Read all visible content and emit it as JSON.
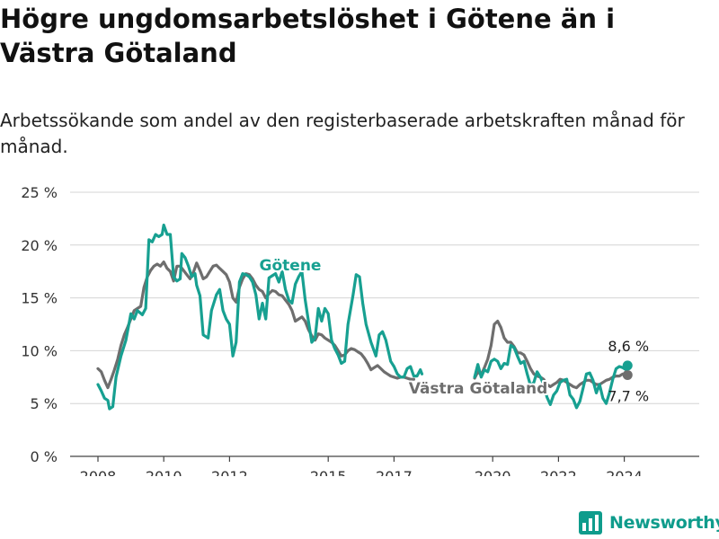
{
  "title": "Högre ungdomsarbetslöshet i Götene än i Västra Götaland",
  "subtitle": "Arbetssökande som andel av den registerbaserade arbetskraften månad för månad.",
  "colors": {
    "gotene": "#17a091",
    "vg": "#6e6e6e",
    "grid": "#d4d4d4",
    "text": "#333333"
  },
  "brand": {
    "name": "Newsworthy",
    "icon": "bar-chart-logo-icon"
  },
  "chart_data": {
    "type": "line",
    "ylim": [
      0,
      25
    ],
    "yticks": [
      0,
      5,
      10,
      15,
      20,
      25
    ],
    "ytick_labels": [
      "0 %",
      "5 %",
      "10 %",
      "15 %",
      "20 %",
      "25 %"
    ],
    "xlim": [
      2008.0,
      2025.5
    ],
    "xticks": [
      2008,
      2010,
      2012,
      2015,
      2017,
      2020,
      2022,
      2024
    ],
    "xtick_labels": [
      "2008",
      "2010",
      "2012",
      "2015",
      "2017",
      "2020",
      "2022",
      "2024"
    ],
    "series": [
      {
        "name": "Götene",
        "color": "#17a091",
        "end_label": "8,6 %",
        "points": [
          [
            2008.0,
            6.8
          ],
          [
            2008.1,
            6.2
          ],
          [
            2008.2,
            5.5
          ],
          [
            2008.3,
            5.3
          ],
          [
            2008.35,
            4.5
          ],
          [
            2008.45,
            4.7
          ],
          [
            2008.55,
            7.5
          ],
          [
            2008.7,
            9.5
          ],
          [
            2008.85,
            11.0
          ],
          [
            2009.0,
            13.5
          ],
          [
            2009.1,
            13.0
          ],
          [
            2009.2,
            13.8
          ],
          [
            2009.35,
            13.4
          ],
          [
            2009.45,
            14.0
          ],
          [
            2009.55,
            20.5
          ],
          [
            2009.65,
            20.3
          ],
          [
            2009.75,
            21.0
          ],
          [
            2009.85,
            20.8
          ],
          [
            2009.95,
            21.0
          ],
          [
            2010.0,
            21.9
          ],
          [
            2010.1,
            21.0
          ],
          [
            2010.2,
            21.0
          ],
          [
            2010.3,
            17.0
          ],
          [
            2010.4,
            16.6
          ],
          [
            2010.5,
            16.8
          ],
          [
            2010.55,
            19.2
          ],
          [
            2010.65,
            18.8
          ],
          [
            2010.75,
            18.0
          ],
          [
            2010.85,
            17.0
          ],
          [
            2010.95,
            17.3
          ],
          [
            2011.0,
            16.2
          ],
          [
            2011.1,
            15.2
          ],
          [
            2011.2,
            11.5
          ],
          [
            2011.35,
            11.2
          ],
          [
            2011.45,
            13.8
          ],
          [
            2011.6,
            15.3
          ],
          [
            2011.7,
            15.8
          ],
          [
            2011.8,
            13.8
          ],
          [
            2011.9,
            13.0
          ],
          [
            2012.0,
            12.5
          ],
          [
            2012.1,
            9.5
          ],
          [
            2012.2,
            10.8
          ],
          [
            2012.3,
            16.5
          ],
          [
            2012.4,
            17.3
          ],
          [
            2012.5,
            17.2
          ],
          [
            2012.6,
            17.0
          ],
          [
            2012.7,
            16.5
          ],
          [
            2012.8,
            15.3
          ],
          [
            2012.9,
            13.0
          ],
          [
            2013.0,
            14.5
          ],
          [
            2013.1,
            13.0
          ],
          [
            2013.2,
            16.9
          ],
          [
            2013.3,
            17.1
          ],
          [
            2013.4,
            17.3
          ],
          [
            2013.5,
            16.5
          ],
          [
            2013.6,
            17.5
          ],
          [
            2013.7,
            15.8
          ],
          [
            2013.8,
            14.8
          ],
          [
            2013.9,
            14.5
          ],
          [
            2014.0,
            16.3
          ],
          [
            2014.1,
            17.0
          ],
          [
            2014.2,
            17.5
          ],
          [
            2014.3,
            14.8
          ],
          [
            2014.4,
            12.8
          ],
          [
            2014.5,
            10.8
          ],
          [
            2014.6,
            11.2
          ],
          [
            2014.7,
            14.0
          ],
          [
            2014.8,
            12.8
          ],
          [
            2014.9,
            14.0
          ],
          [
            2015.0,
            13.5
          ],
          [
            2015.1,
            11.0
          ],
          [
            2015.2,
            10.2
          ],
          [
            2015.3,
            9.6
          ],
          [
            2015.4,
            8.8
          ],
          [
            2015.5,
            9.0
          ],
          [
            2015.6,
            12.5
          ],
          [
            2015.75,
            15.2
          ],
          [
            2015.85,
            17.2
          ],
          [
            2015.95,
            17.0
          ],
          [
            2016.05,
            14.5
          ],
          [
            2016.15,
            12.5
          ],
          [
            2016.3,
            10.8
          ],
          [
            2016.45,
            9.5
          ],
          [
            2016.55,
            11.5
          ],
          [
            2016.65,
            11.8
          ],
          [
            2016.75,
            11.0
          ],
          [
            2016.9,
            9.0
          ],
          [
            2017.0,
            8.5
          ],
          [
            2017.1,
            7.8
          ],
          [
            2017.2,
            7.5
          ],
          [
            2017.3,
            7.5
          ],
          [
            2017.4,
            8.3
          ],
          [
            2017.5,
            8.5
          ],
          [
            2017.6,
            7.6
          ],
          [
            2017.7,
            7.6
          ],
          [
            2017.8,
            8.2
          ],
          [
            2017.85,
            7.8
          ]
        ],
        "points_b": [
          [
            2019.45,
            7.5
          ],
          [
            2019.55,
            8.7
          ],
          [
            2019.65,
            7.5
          ],
          [
            2019.75,
            8.2
          ],
          [
            2019.85,
            8.0
          ],
          [
            2019.95,
            9.0
          ],
          [
            2020.05,
            9.2
          ],
          [
            2020.15,
            9.0
          ],
          [
            2020.25,
            8.3
          ],
          [
            2020.35,
            8.8
          ],
          [
            2020.45,
            8.7
          ],
          [
            2020.55,
            10.5
          ],
          [
            2020.65,
            10.3
          ],
          [
            2020.75,
            9.5
          ],
          [
            2020.85,
            8.8
          ],
          [
            2020.95,
            9.0
          ],
          [
            2021.05,
            7.8
          ],
          [
            2021.15,
            6.7
          ],
          [
            2021.25,
            7.0
          ],
          [
            2021.35,
            8.0
          ],
          [
            2021.45,
            7.5
          ],
          [
            2021.55,
            6.8
          ],
          [
            2021.65,
            5.6
          ],
          [
            2021.75,
            4.9
          ],
          [
            2021.85,
            5.8
          ],
          [
            2021.95,
            6.2
          ],
          [
            2022.05,
            7.0
          ],
          [
            2022.15,
            7.2
          ],
          [
            2022.25,
            7.3
          ],
          [
            2022.35,
            5.8
          ],
          [
            2022.45,
            5.4
          ],
          [
            2022.55,
            4.6
          ],
          [
            2022.65,
            5.2
          ],
          [
            2022.75,
            6.5
          ],
          [
            2022.85,
            7.8
          ],
          [
            2022.95,
            7.9
          ],
          [
            2023.05,
            7.2
          ],
          [
            2023.15,
            6.0
          ],
          [
            2023.25,
            6.8
          ],
          [
            2023.35,
            5.5
          ],
          [
            2023.45,
            5.0
          ],
          [
            2023.55,
            6.0
          ],
          [
            2023.65,
            7.3
          ],
          [
            2023.75,
            8.3
          ],
          [
            2023.85,
            8.5
          ],
          [
            2023.95,
            8.4
          ],
          [
            2024.05,
            8.2
          ],
          [
            2024.1,
            8.6
          ]
        ]
      },
      {
        "name": "Västra Götaland",
        "color": "#6e6e6e",
        "end_label": "7,7 %",
        "points": [
          [
            2008.0,
            8.3
          ],
          [
            2008.1,
            8.0
          ],
          [
            2008.2,
            7.2
          ],
          [
            2008.3,
            6.5
          ],
          [
            2008.4,
            7.3
          ],
          [
            2008.5,
            8.2
          ],
          [
            2008.6,
            9.2
          ],
          [
            2008.7,
            10.5
          ],
          [
            2008.8,
            11.5
          ],
          [
            2008.9,
            12.2
          ],
          [
            2009.0,
            13.0
          ],
          [
            2009.1,
            13.8
          ],
          [
            2009.2,
            14.0
          ],
          [
            2009.3,
            14.2
          ],
          [
            2009.4,
            16.0
          ],
          [
            2009.5,
            17.0
          ],
          [
            2009.6,
            17.6
          ],
          [
            2009.7,
            18.0
          ],
          [
            2009.8,
            18.2
          ],
          [
            2009.9,
            18.0
          ],
          [
            2010.0,
            18.4
          ],
          [
            2010.1,
            17.8
          ],
          [
            2010.2,
            17.5
          ],
          [
            2010.3,
            16.6
          ],
          [
            2010.4,
            18.0
          ],
          [
            2010.5,
            18.0
          ],
          [
            2010.6,
            17.6
          ],
          [
            2010.7,
            17.2
          ],
          [
            2010.8,
            16.8
          ],
          [
            2010.9,
            17.4
          ],
          [
            2011.0,
            18.3
          ],
          [
            2011.1,
            17.6
          ],
          [
            2011.2,
            16.8
          ],
          [
            2011.3,
            17.0
          ],
          [
            2011.4,
            17.5
          ],
          [
            2011.5,
            18.0
          ],
          [
            2011.6,
            18.1
          ],
          [
            2011.7,
            17.8
          ],
          [
            2011.8,
            17.5
          ],
          [
            2011.9,
            17.2
          ],
          [
            2012.0,
            16.5
          ],
          [
            2012.1,
            15.0
          ],
          [
            2012.2,
            14.6
          ],
          [
            2012.3,
            16.0
          ],
          [
            2012.4,
            16.8
          ],
          [
            2012.5,
            17.3
          ],
          [
            2012.6,
            17.2
          ],
          [
            2012.7,
            16.8
          ],
          [
            2012.8,
            16.2
          ],
          [
            2012.9,
            15.8
          ],
          [
            2013.0,
            15.6
          ],
          [
            2013.1,
            15.0
          ],
          [
            2013.2,
            15.4
          ],
          [
            2013.3,
            15.7
          ],
          [
            2013.4,
            15.6
          ],
          [
            2013.5,
            15.3
          ],
          [
            2013.6,
            15.2
          ],
          [
            2013.7,
            14.8
          ],
          [
            2013.8,
            14.4
          ],
          [
            2013.9,
            13.8
          ],
          [
            2014.0,
            12.8
          ],
          [
            2014.1,
            13.0
          ],
          [
            2014.2,
            13.2
          ],
          [
            2014.3,
            12.8
          ],
          [
            2014.4,
            12.0
          ],
          [
            2014.5,
            11.4
          ],
          [
            2014.6,
            11.0
          ],
          [
            2014.7,
            11.6
          ],
          [
            2014.8,
            11.5
          ],
          [
            2014.9,
            11.2
          ],
          [
            2015.0,
            11.0
          ],
          [
            2015.1,
            10.8
          ],
          [
            2015.2,
            10.5
          ],
          [
            2015.3,
            10.0
          ],
          [
            2015.4,
            9.5
          ],
          [
            2015.5,
            9.6
          ],
          [
            2015.6,
            10.0
          ],
          [
            2015.7,
            10.2
          ],
          [
            2015.8,
            10.1
          ],
          [
            2015.9,
            9.9
          ],
          [
            2016.0,
            9.7
          ],
          [
            2016.1,
            9.3
          ],
          [
            2016.2,
            8.8
          ],
          [
            2016.3,
            8.2
          ],
          [
            2016.4,
            8.4
          ],
          [
            2016.5,
            8.6
          ],
          [
            2016.6,
            8.3
          ],
          [
            2016.7,
            8.0
          ],
          [
            2016.8,
            7.8
          ],
          [
            2016.9,
            7.6
          ],
          [
            2017.0,
            7.5
          ],
          [
            2017.1,
            7.4
          ],
          [
            2017.2,
            7.5
          ],
          [
            2017.3,
            7.5
          ],
          [
            2017.4,
            7.4
          ],
          [
            2017.5,
            7.3
          ],
          [
            2017.6,
            7.3
          ]
        ],
        "points_b": [
          [
            2019.45,
            7.4
          ],
          [
            2019.55,
            8.0
          ],
          [
            2019.65,
            7.7
          ],
          [
            2019.75,
            8.4
          ],
          [
            2019.85,
            9.2
          ],
          [
            2019.95,
            10.5
          ],
          [
            2020.05,
            12.5
          ],
          [
            2020.15,
            12.8
          ],
          [
            2020.25,
            12.2
          ],
          [
            2020.35,
            11.2
          ],
          [
            2020.45,
            10.8
          ],
          [
            2020.55,
            10.8
          ],
          [
            2020.65,
            10.4
          ],
          [
            2020.75,
            9.8
          ],
          [
            2020.85,
            9.8
          ],
          [
            2020.95,
            9.6
          ],
          [
            2021.05,
            9.0
          ],
          [
            2021.15,
            8.3
          ],
          [
            2021.25,
            7.8
          ],
          [
            2021.35,
            7.6
          ],
          [
            2021.45,
            7.5
          ],
          [
            2021.55,
            7.3
          ],
          [
            2021.65,
            6.8
          ],
          [
            2021.75,
            6.6
          ],
          [
            2021.85,
            6.8
          ],
          [
            2021.95,
            7.0
          ],
          [
            2022.05,
            7.3
          ],
          [
            2022.15,
            7.2
          ],
          [
            2022.25,
            7.0
          ],
          [
            2022.35,
            6.8
          ],
          [
            2022.45,
            6.6
          ],
          [
            2022.55,
            6.5
          ],
          [
            2022.65,
            6.8
          ],
          [
            2022.75,
            7.0
          ],
          [
            2022.85,
            7.2
          ],
          [
            2022.95,
            7.2
          ],
          [
            2023.05,
            7.0
          ],
          [
            2023.15,
            6.8
          ],
          [
            2023.25,
            6.8
          ],
          [
            2023.35,
            7.0
          ],
          [
            2023.45,
            7.2
          ],
          [
            2023.55,
            7.3
          ],
          [
            2023.65,
            7.5
          ],
          [
            2023.75,
            7.6
          ],
          [
            2023.85,
            7.6
          ],
          [
            2023.95,
            7.8
          ],
          [
            2024.05,
            7.8
          ],
          [
            2024.1,
            7.7
          ]
        ]
      }
    ],
    "annotations": [
      {
        "text": "Götene",
        "series": "Götene"
      },
      {
        "text": "Västra Götaland",
        "series": "Västra Götaland"
      }
    ]
  }
}
